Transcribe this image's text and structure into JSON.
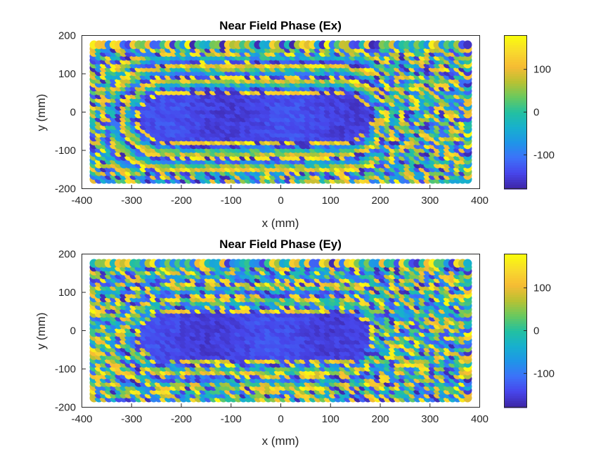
{
  "chart_data": [
    {
      "type": "scatter",
      "title": "Near Field Phase (Ex)",
      "xlabel": "x (mm)",
      "ylabel": "y (mm)",
      "xlim": [
        -400,
        400
      ],
      "ylim": [
        -200,
        200
      ],
      "xticks": [
        "-400",
        "-300",
        "-200",
        "-100",
        "0",
        "100",
        "200",
        "300",
        "400"
      ],
      "yticks": [
        "200",
        "100",
        "0",
        "-100",
        "-200"
      ],
      "grid": false,
      "grid_extent": {
        "x": [
          -375,
          375
        ],
        "y": [
          -175,
          175
        ],
        "step": 10
      },
      "colorbar": {
        "limits": [
          -180,
          180
        ],
        "ticks": [
          "100",
          "0",
          "-100"
        ],
        "colormap": "parula"
      },
      "pattern": "Phase near -150 (blue) over the aperture x = -280 to 180, y = -75 to 50, ringed by +150 (yellow); alternating phase bands outward; mixed phases along the edges and for x > 200"
    },
    {
      "type": "scatter",
      "title": "Near Field Phase (Ey)",
      "xlabel": "x (mm)",
      "ylabel": "y (mm)",
      "xlim": [
        -400,
        400
      ],
      "ylim": [
        -200,
        200
      ],
      "xticks": [
        "-400",
        "-300",
        "-200",
        "-100",
        "0",
        "100",
        "200",
        "300",
        "400"
      ],
      "yticks": [
        "200",
        "100",
        "0",
        "-100",
        "-200"
      ],
      "grid": false,
      "grid_extent": {
        "x": [
          -375,
          375
        ],
        "y": [
          -175,
          175
        ],
        "step": 10
      },
      "colorbar": {
        "limits": [
          -180,
          180
        ],
        "ticks": [
          "100",
          "0",
          "-100"
        ],
        "colormap": "parula"
      },
      "pattern": "Similar rounded-rectangle blue region, more irregular, with stronger mixing of phases near the aperture"
    }
  ],
  "colors": {
    "parula_stops": [
      "#3e26a8",
      "#4746eb",
      "#3c72f9",
      "#1f95e8",
      "#17b0ce",
      "#23c0a0",
      "#69c95e",
      "#b8c233",
      "#f6bb34",
      "#f8d92d",
      "#f9fb0e"
    ],
    "axis": "#262626"
  }
}
